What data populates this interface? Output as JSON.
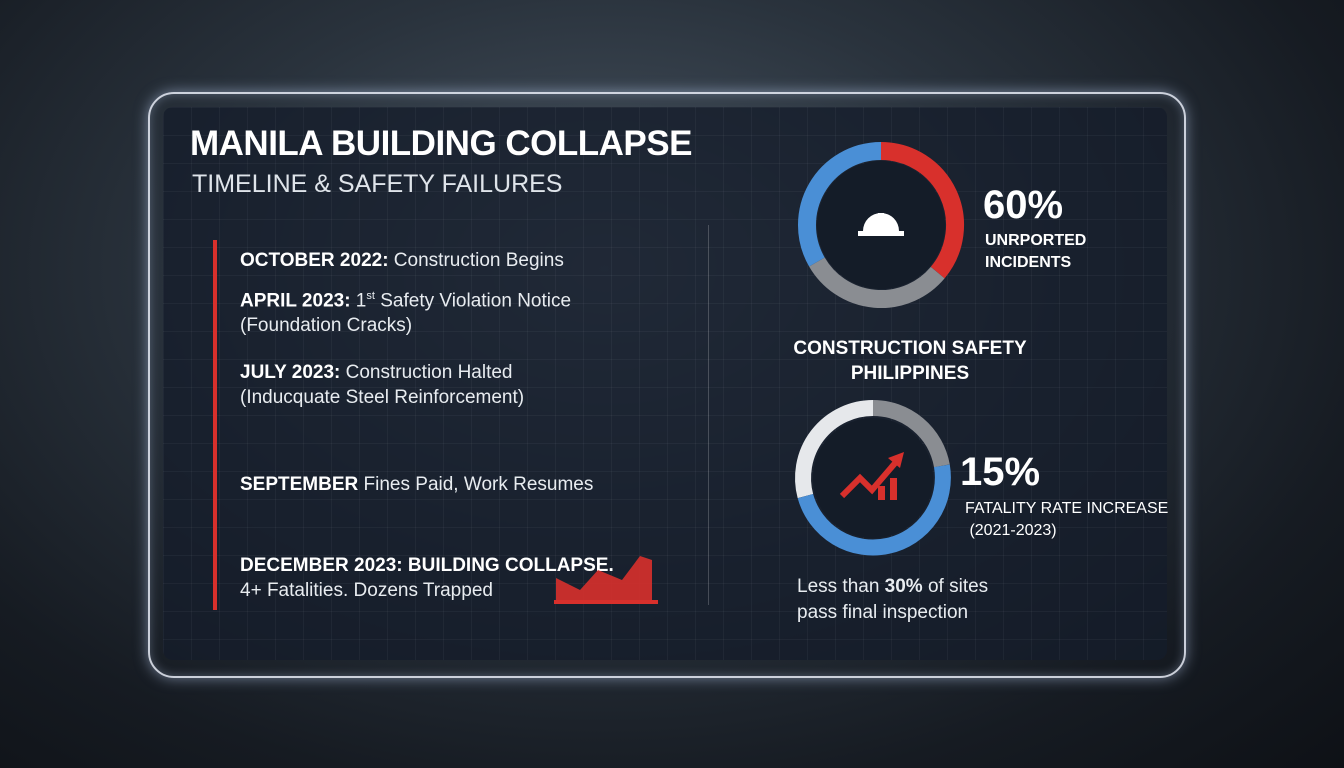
{
  "header": {
    "title": "MANILA BUILDING COLLAPSE",
    "subtitle": "TIMELINE & SAFETY FAILURES"
  },
  "timeline": [
    {
      "date": "OCTOBER 2022:",
      "text": " Construction Begins"
    },
    {
      "date": "APRIL 2023:",
      "ordinal": " 1",
      "suffix": "st",
      "text": " Safety Violation Notice",
      "detail": "(Foundation Cracks)"
    },
    {
      "date": "JULY 2023:",
      "text": " Construction Halted",
      "detail": "(Inducquate Steel Reinforcement)"
    },
    {
      "date": "SEPTEMBER",
      "text": " Fines Paid, Work Resumes"
    },
    {
      "date": "DECEMBER 2023: BUILDING COLLAPSE.",
      "detail": "4+ Fatalities. Dozens Trapped"
    }
  ],
  "stats": {
    "unreported": {
      "value": "60%",
      "label": [
        "UNRPORTED",
        "INCIDENTS"
      ]
    },
    "heading": [
      "CONSTRUCTION SAFETY",
      "PHILIPPINES"
    ],
    "fatality": {
      "value": "15%",
      "label": "FATALITY RATE INCREASE",
      "period": "(2021-2023)"
    },
    "footer": {
      "pre": "Less than ",
      "value": "30%",
      "post": " of sites",
      "line2": "pass final inspection"
    }
  }
}
